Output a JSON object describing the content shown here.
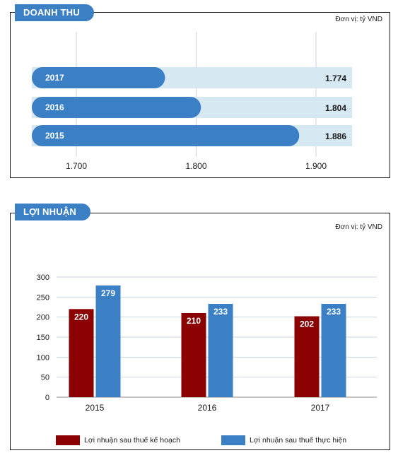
{
  "revenue": {
    "title": "DOANH THU",
    "unit": "Đơn vị: tỷ VND"
  },
  "profit": {
    "title": "LỢI NHUẬN",
    "unit": "Đơn vị: tỷ VND"
  },
  "legend": {
    "plan": "Lợi nhuận sau thuế kế hoạch",
    "actual": "Lợi nhuận sau thuế thực hiện"
  },
  "colors": {
    "accent": "#3b7fc4",
    "plan": "#8b0000",
    "track": "#d6e8f2"
  },
  "chart_data": [
    {
      "type": "bar",
      "orientation": "horizontal",
      "title": "DOANH THU",
      "unit": "Đơn vị: tỷ VND",
      "categories": [
        "2017",
        "2016",
        "2015"
      ],
      "values": [
        1774,
        1804,
        1886
      ],
      "value_labels": [
        "1.774",
        "1.804",
        "1.886"
      ],
      "xlim": [
        1650,
        1930
      ],
      "xticks": [
        1700,
        1800,
        1900
      ],
      "xtick_labels": [
        "1.700",
        "1.800",
        "1.900"
      ],
      "grid": true
    },
    {
      "type": "bar",
      "title": "LỢI NHUẬN",
      "unit": "Đơn vị: tỷ VND",
      "categories": [
        "2015",
        "2016",
        "2017"
      ],
      "series": [
        {
          "name": "Lợi nhuận sau thuế kế hoạch",
          "values": [
            220,
            210,
            202
          ]
        },
        {
          "name": "Lợi nhuận sau thuế thực hiện",
          "values": [
            279,
            233,
            233
          ]
        }
      ],
      "ylim": [
        0,
        300
      ],
      "yticks": [
        0,
        50,
        100,
        150,
        200,
        250,
        300
      ],
      "grid": true,
      "legend": "bottom"
    }
  ]
}
